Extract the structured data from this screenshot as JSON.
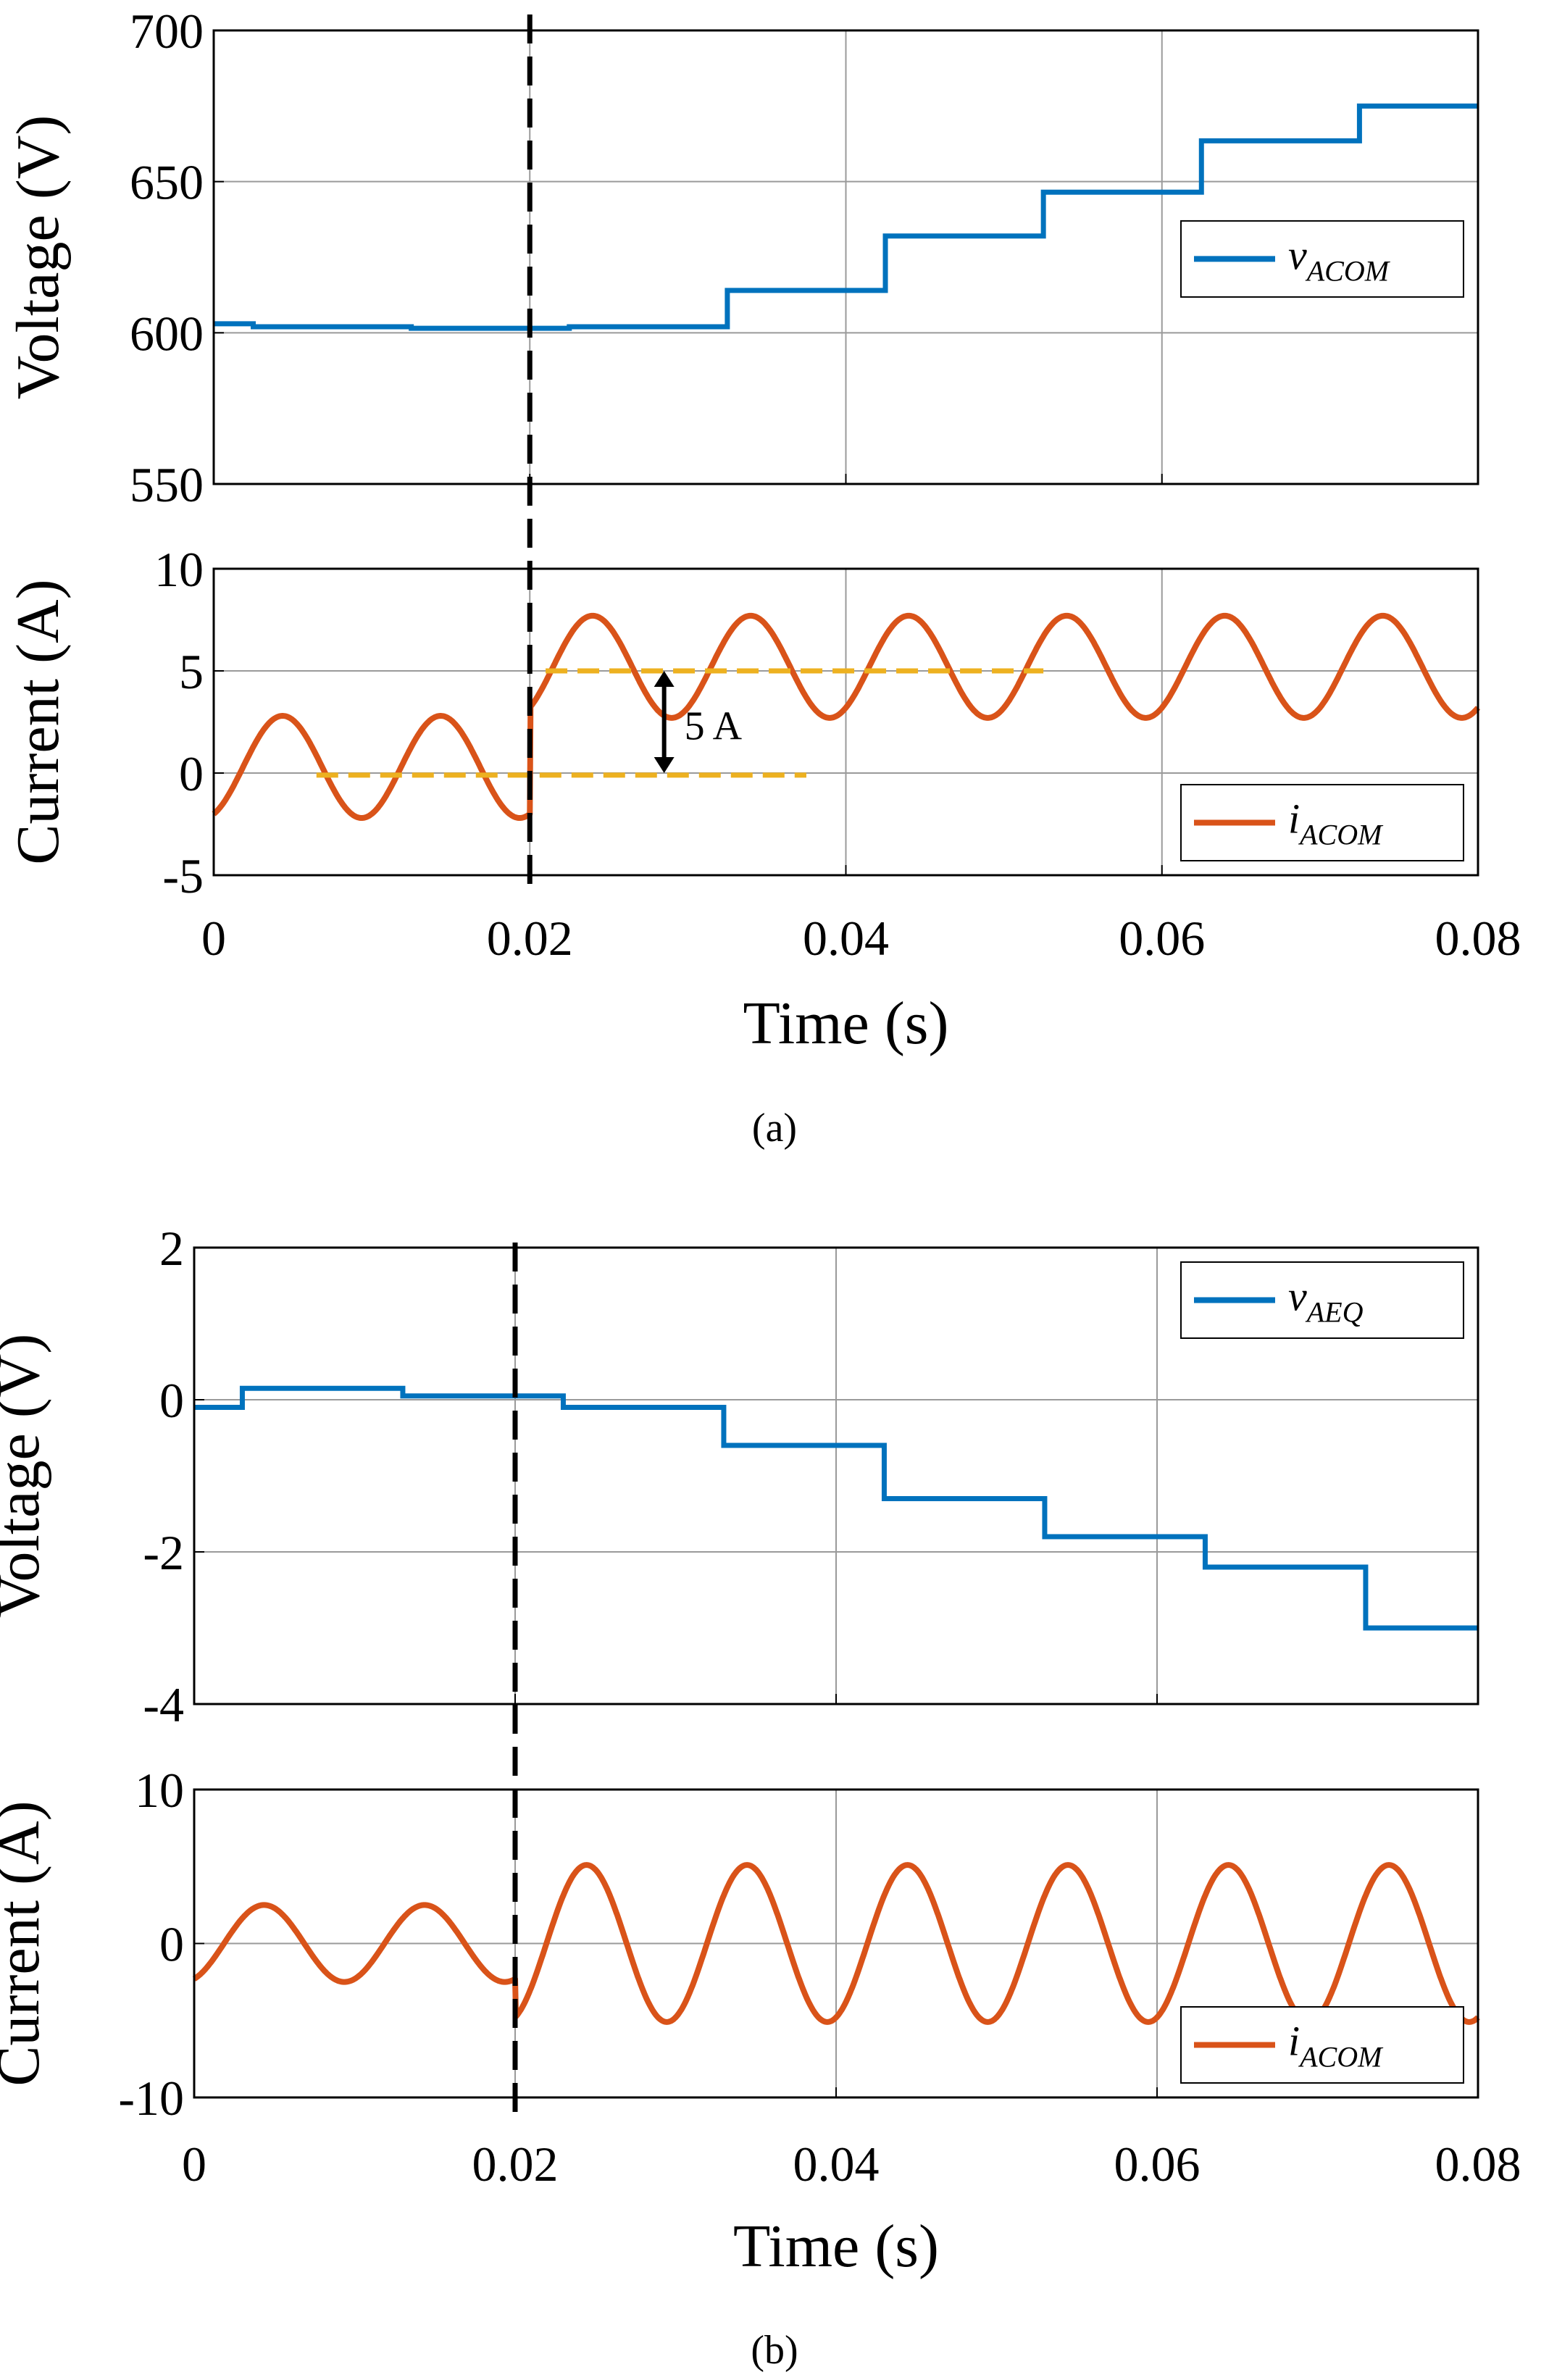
{
  "colors": {
    "voltage": "#0072BD",
    "current": "#D95319",
    "reference": "#EDB120",
    "marker": "#000000",
    "grid": "#9a9a9a"
  },
  "chart_data": [
    {
      "type": "line",
      "caption": "(a)",
      "step_time": 0.02,
      "xlabel": "Time (s)",
      "xlim": [
        0,
        0.08
      ],
      "xticks": [
        "0",
        "0.02",
        "0.04",
        "0.06",
        "0.08"
      ],
      "panels": [
        {
          "ylabel": "Voltage (V)",
          "ylim": [
            550,
            700
          ],
          "yticks": [
            "700",
            "650",
            "600",
            "550"
          ],
          "legend": {
            "symbol": "v",
            "sub": "ACOM",
            "placement": "center-right"
          },
          "series": [
            {
              "kind": "step",
              "x": [
                0,
                0.0025,
                0.0125,
                0.0225,
                0.0325,
                0.0425,
                0.0525,
                0.0625,
                0.0725,
                0.08
              ],
              "y": [
                603,
                602,
                601.5,
                602,
                614,
                632,
                646.5,
                663.5,
                675,
                675
              ]
            }
          ]
        },
        {
          "ylabel": "Current (A)",
          "ylim": [
            -5,
            10
          ],
          "yticks": [
            "10",
            "5",
            "0",
            "-5"
          ],
          "legend": {
            "symbol": "i",
            "sub": "ACOM",
            "placement": "bottom-right"
          },
          "series": [
            {
              "kind": "sine",
              "before": {
                "offset": 0.3,
                "amplitude": 2.5,
                "phase_start": -2
              },
              "after": {
                "offset": 5.2,
                "amplitude": 2.5,
                "start": 3.2
              },
              "freq": 100
            }
          ],
          "reference_lines": [
            {
              "y": -0.1,
              "x": [
                0.0065,
                0.0375
              ]
            },
            {
              "y": 5,
              "x": [
                0.021,
                0.0525
              ]
            }
          ],
          "annotation": {
            "text": "5 A",
            "x": 0.0285,
            "y_from": 0,
            "y_to": 5
          }
        }
      ]
    },
    {
      "type": "line",
      "caption": "(b)",
      "step_time": 0.02,
      "xlabel": "Time (s)",
      "xlim": [
        0,
        0.08
      ],
      "xticks": [
        "0",
        "0.02",
        "0.04",
        "0.06",
        "0.08"
      ],
      "panels": [
        {
          "ylabel": "Voltage (V)",
          "ylim": [
            -4,
            2
          ],
          "yticks": [
            "2",
            "0",
            "-2",
            "-4"
          ],
          "legend": {
            "symbol": "v",
            "sub": "AEQ",
            "placement": "top-right"
          },
          "series": [
            {
              "kind": "step",
              "x": [
                0,
                0.003,
                0.013,
                0.023,
                0.033,
                0.043,
                0.053,
                0.063,
                0.073,
                0.08
              ],
              "y": [
                -0.1,
                0.15,
                0.05,
                -0.1,
                -0.6,
                -1.3,
                -1.8,
                -2.2,
                -3.0,
                -3.0
              ]
            }
          ]
        },
        {
          "ylabel": "Current (A)",
          "ylim": [
            -10,
            10
          ],
          "yticks": [
            "10",
            "0",
            "-10"
          ],
          "legend": {
            "symbol": "i",
            "sub": "ACOM",
            "placement": "bottom-right"
          },
          "series": [
            {
              "kind": "sine",
              "before": {
                "offset": 0,
                "amplitude": 2.5,
                "phase_start": -2.3
              },
              "after": {
                "offset": 0,
                "amplitude": 5.1,
                "start": -4.8
              },
              "freq": 100
            }
          ]
        }
      ]
    }
  ]
}
